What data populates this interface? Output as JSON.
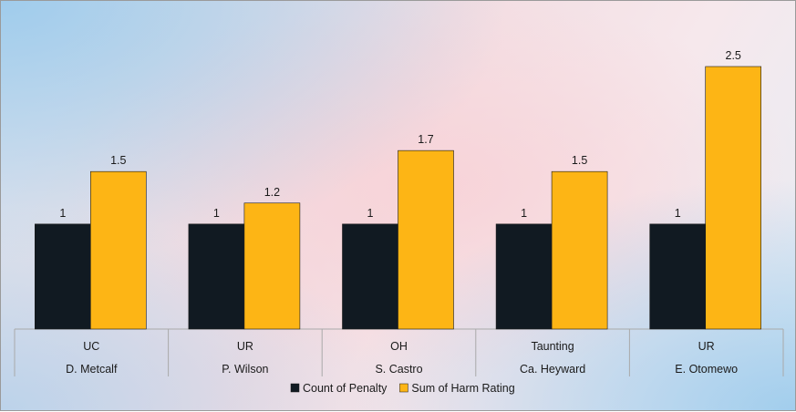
{
  "chart_data": {
    "type": "bar",
    "categories": [
      {
        "top": "UC",
        "bottom": "D. Metcalf"
      },
      {
        "top": "UR",
        "bottom": "P. Wilson"
      },
      {
        "top": "OH",
        "bottom": "S. Castro"
      },
      {
        "top": "Taunting",
        "bottom": "Ca. Heyward"
      },
      {
        "top": "UR",
        "bottom": "E. Otomewo"
      }
    ],
    "series": [
      {
        "name": "Count of Penalty",
        "color": "#111a22",
        "values": [
          1,
          1,
          1,
          1,
          1
        ],
        "labels": [
          "1",
          "1",
          "1",
          "1",
          "1"
        ]
      },
      {
        "name": "Sum of Harm Rating",
        "color": "#fdb515",
        "values": [
          1.5,
          1.2,
          1.7,
          1.5,
          2.5
        ],
        "labels": [
          "1.5",
          "1.2",
          "1.7",
          "1.5",
          "2.5"
        ]
      }
    ],
    "ylim": [
      0,
      2.5
    ],
    "grid": false,
    "legend": "bottom"
  }
}
